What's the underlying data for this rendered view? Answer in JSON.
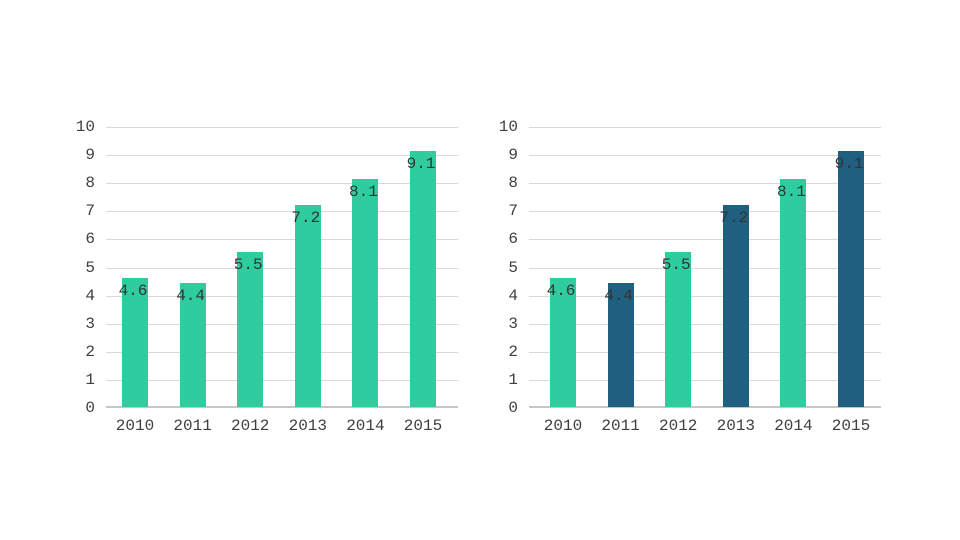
{
  "page": {
    "background": "#ffffff"
  },
  "colors": {
    "bar_green": "#2ecc9e",
    "bar_dark_blue": "#1f5f7f",
    "gridline": "#d9d9d9",
    "axis_line": "#c6c6c6",
    "tick_text": "#3f3f3f",
    "value_text": "#333333"
  },
  "chart_data": [
    {
      "type": "bar",
      "title": "",
      "categories": [
        "2010",
        "2011",
        "2012",
        "2013",
        "2014",
        "2015"
      ],
      "values": [
        4.6,
        4.4,
        5.5,
        7.2,
        8.1,
        9.1
      ],
      "bar_labels": [
        "4.6",
        "4.4",
        "5.5",
        "7.2",
        "8.1",
        "9.1"
      ],
      "bar_colors": [
        "#2ecc9e",
        "#2ecc9e",
        "#2ecc9e",
        "#2ecc9e",
        "#2ecc9e",
        "#2ecc9e"
      ],
      "xlabel": "",
      "ylabel": "",
      "ylim": [
        0,
        10
      ],
      "yticks": [
        0,
        1,
        2,
        3,
        4,
        5,
        6,
        7,
        8,
        9,
        10
      ],
      "grid": true,
      "legend_position": "none",
      "value_labels_position": "inside-top"
    },
    {
      "type": "bar",
      "title": "",
      "categories": [
        "2010",
        "2011",
        "2012",
        "2013",
        "2014",
        "2015"
      ],
      "values": [
        4.6,
        4.4,
        5.5,
        7.2,
        8.1,
        9.1
      ],
      "bar_labels": [
        "4.6",
        "4.4",
        "5.5",
        "7.2",
        "8.1",
        "9.1"
      ],
      "bar_colors": [
        "#2ecc9e",
        "#1f5f7f",
        "#2ecc9e",
        "#1f5f7f",
        "#2ecc9e",
        "#1f5f7f"
      ],
      "xlabel": "",
      "ylabel": "",
      "ylim": [
        0,
        10
      ],
      "yticks": [
        0,
        1,
        2,
        3,
        4,
        5,
        6,
        7,
        8,
        9,
        10
      ],
      "grid": true,
      "legend_position": "none",
      "value_labels_position": "inside-top"
    }
  ]
}
